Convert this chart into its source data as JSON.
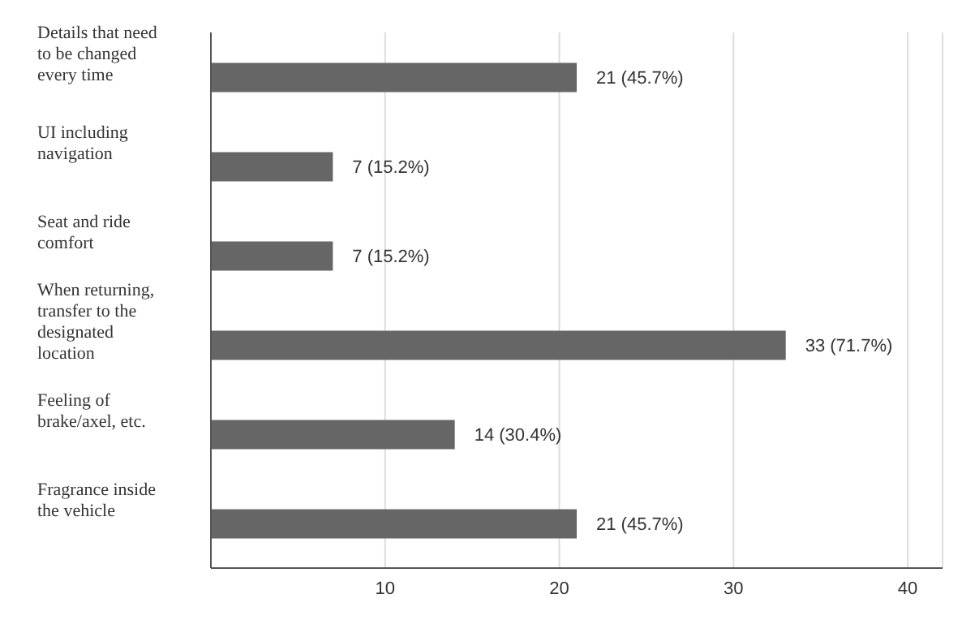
{
  "chart_data": {
    "type": "bar",
    "orientation": "horizontal",
    "categories": [
      "Details that need to be changed every time",
      "UI including navigation",
      "Seat and ride comfort",
      "When returning, transfer to the designated location",
      "Feeling of brake/axel, etc.",
      "Fragrance inside the vehicle"
    ],
    "values": [
      21,
      7,
      7,
      33,
      14,
      21
    ],
    "value_labels": [
      "21 (45.7%)",
      "7 (15.2%)",
      "7 (15.2%)",
      "33 (71.7%)",
      "14 (30.4%)",
      "21 (45.7%)"
    ],
    "color": "#666666",
    "xlim": [
      0,
      42
    ],
    "xticks": [
      10,
      20,
      30,
      40
    ],
    "grid": "x"
  }
}
